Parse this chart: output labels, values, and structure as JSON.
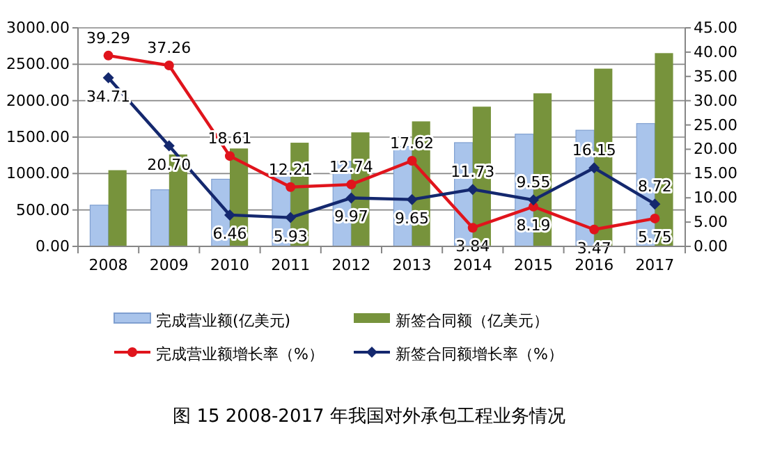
{
  "chart_data": {
    "type": "bar",
    "title": "图 15 2008-2017 年我国对外承包工程业务情况",
    "categories": [
      "2008",
      "2009",
      "2010",
      "2011",
      "2012",
      "2013",
      "2014",
      "2015",
      "2016",
      "2017"
    ],
    "series": [
      {
        "name": "完成营业额(亿美元)",
        "color": "#a9c4eb",
        "values": [
          566,
          777,
          922,
          1034,
          1166,
          1371,
          1424,
          1541,
          1594,
          1686
        ]
      },
      {
        "name": "新签合同额（亿美元）",
        "color": "#77933c",
        "values": [
          1046,
          1262,
          1344,
          1423,
          1565,
          1716,
          1918,
          2101,
          2440,
          2653
        ]
      },
      {
        "name": "完成营业额增长率（%）",
        "type": "line",
        "axis": "y2",
        "color": "#e0141c",
        "marker": "circle",
        "values": [
          39.29,
          37.26,
          18.61,
          12.21,
          12.74,
          17.62,
          3.84,
          8.19,
          3.47,
          5.75
        ],
        "value_labels": [
          "39.29",
          "37.26",
          "18.61",
          "12.21",
          "12.74",
          "17.62",
          "3.84",
          "8.19",
          "3.47",
          "5.75"
        ]
      },
      {
        "name": "新签合同额增长率（%）",
        "type": "line",
        "axis": "y2",
        "color": "#14286e",
        "marker": "diamond",
        "values": [
          34.71,
          20.7,
          6.46,
          5.93,
          9.97,
          9.65,
          11.73,
          9.55,
          16.15,
          8.72
        ],
        "value_labels": [
          "34.71",
          "20.70",
          "6.46",
          "5.93",
          "9.97",
          "9.65",
          "11.73",
          "9.55",
          "16.15",
          "8.72"
        ]
      }
    ],
    "ylim": [
      0,
      3000
    ],
    "yticks": [
      {
        "value": 0,
        "label": "0.00"
      },
      {
        "value": 500,
        "label": "500.00"
      },
      {
        "value": 1000,
        "label": "1000.00"
      },
      {
        "value": 1500,
        "label": "1500.00"
      },
      {
        "value": 2000,
        "label": "2000.00"
      },
      {
        "value": 2500,
        "label": "2500.00"
      },
      {
        "value": 3000,
        "label": "3000.00"
      }
    ],
    "y2lim": [
      0,
      45
    ],
    "y2ticks": [
      {
        "value": 0,
        "label": "0.00"
      },
      {
        "value": 5,
        "label": "5.00"
      },
      {
        "value": 10,
        "label": "10.00"
      },
      {
        "value": 15,
        "label": "15.00"
      },
      {
        "value": 20,
        "label": "20.00"
      },
      {
        "value": 25,
        "label": "25.00"
      },
      {
        "value": 30,
        "label": "30.00"
      },
      {
        "value": 35,
        "label": "35.00"
      },
      {
        "value": 40,
        "label": "40.00"
      },
      {
        "value": 45,
        "label": "45.00"
      }
    ],
    "grid": "y",
    "legend": "bottom",
    "line_style": "solid"
  }
}
